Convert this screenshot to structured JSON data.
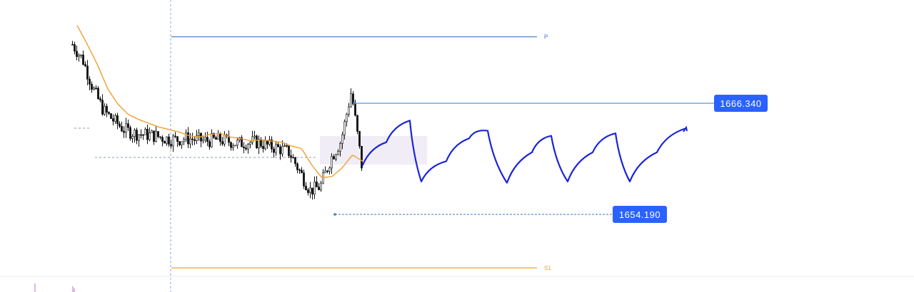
{
  "colors": {
    "background": "#ffffff",
    "candle": "#111111",
    "ma_line": "#f0a030",
    "pivot_line": "#3a78c6",
    "s1_line": "#f0a030",
    "price_badge_bg": "#2962ff",
    "drawing": "#1a25d6",
    "crosshair": "#7fa8d8",
    "zone_fill": "#efeaf6"
  },
  "chart_data": {
    "type": "line",
    "title": "",
    "xlabel": "",
    "ylabel": "",
    "ylim": [
      1650.5,
      1673.5
    ],
    "series": [
      {
        "values": [
          1670.0,
          1668.8,
          1666.5,
          1664.8,
          1664.0,
          1663.3,
          1663.0,
          1662.9,
          1662.8,
          1662.6,
          1662.5,
          1662.6,
          1662.5,
          1662.4,
          1662.5,
          1662.4,
          1662.2,
          1662.3,
          1662.3,
          1662.0,
          1661.8,
          1661.5,
          1660.0,
          1658.5,
          1658.8,
          1661.0,
          1662.4,
          1666.3,
          1660.5
        ]
      },
      {
        "values": [
          1671.5,
          1670.0,
          1668.4,
          1666.5,
          1665.3,
          1664.5,
          1664.1,
          1663.8,
          1663.5,
          1663.3,
          1663.1,
          1662.8,
          1662.7,
          1662.9,
          1663.0,
          1662.7,
          1662.6,
          1662.4,
          1662.5,
          1662.4,
          1662.3,
          1662.0,
          1661.8,
          1660.5,
          1659.5,
          1659.6,
          1660.3,
          1661.3,
          1660.8
        ]
      }
    ],
    "price_labels": [
      "1666.340",
      "1654.190"
    ],
    "level_labels": [
      "P",
      "S1"
    ],
    "levels": {
      "P": 1670.6,
      "S1": 1652.4
    },
    "projection_path": [
      1660.5,
      1662.3,
      1664.0,
      1659.2,
      1660.8,
      1662.6,
      1663.2,
      1659.1,
      1661.5,
      1662.8,
      1659.2,
      1661.5,
      1663.0,
      1659.2,
      1661.5,
      1663.4
    ],
    "grid": false
  }
}
